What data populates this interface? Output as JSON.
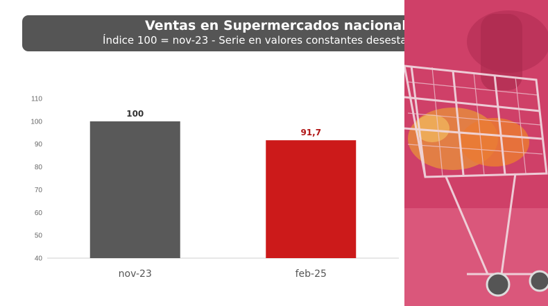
{
  "title": "Ventas en Supermercados nacionales",
  "subtitle": "Índice 100 = nov-23 - Serie en valores constantes desestacionalizada",
  "colors": {
    "banner": "#555555",
    "bar_nov": "#595959",
    "bar_feb": "#cc1a1a",
    "label_nov": "#333333",
    "label_feb": "#b01515",
    "photo_accent": "#d2456c"
  },
  "photo": {
    "icon": "shopping-cart-icon"
  },
  "chart_data": {
    "type": "bar",
    "title": "Ventas en Supermercados nacionales",
    "subtitle": "Índice 100 = nov-23 - Serie en valores constantes desestacionalizada",
    "xlabel": "",
    "ylabel": "",
    "ylim": [
      40,
      110
    ],
    "yticks": [
      "110",
      "100",
      "90",
      "80",
      "70",
      "60",
      "50",
      "40"
    ],
    "grid": false,
    "categories": [
      "nov-23",
      "feb-25"
    ],
    "values": [
      100,
      91.7
    ],
    "value_labels": [
      "100",
      "91,7"
    ]
  }
}
